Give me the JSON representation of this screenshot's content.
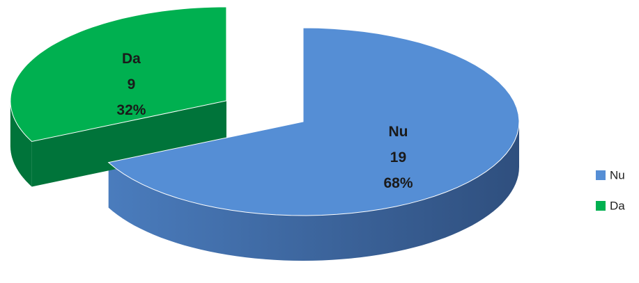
{
  "chart_data": {
    "type": "pie3d",
    "categories": [
      "Nu",
      "Da"
    ],
    "values": [
      19,
      9
    ],
    "percent_labels": [
      "68%",
      "32%"
    ],
    "colors": [
      "#558ed5",
      "#00b050"
    ],
    "side_colors": [
      "#3d6aa6",
      "#00743a"
    ],
    "exploded": [
      false,
      true
    ],
    "legend": "right"
  }
}
